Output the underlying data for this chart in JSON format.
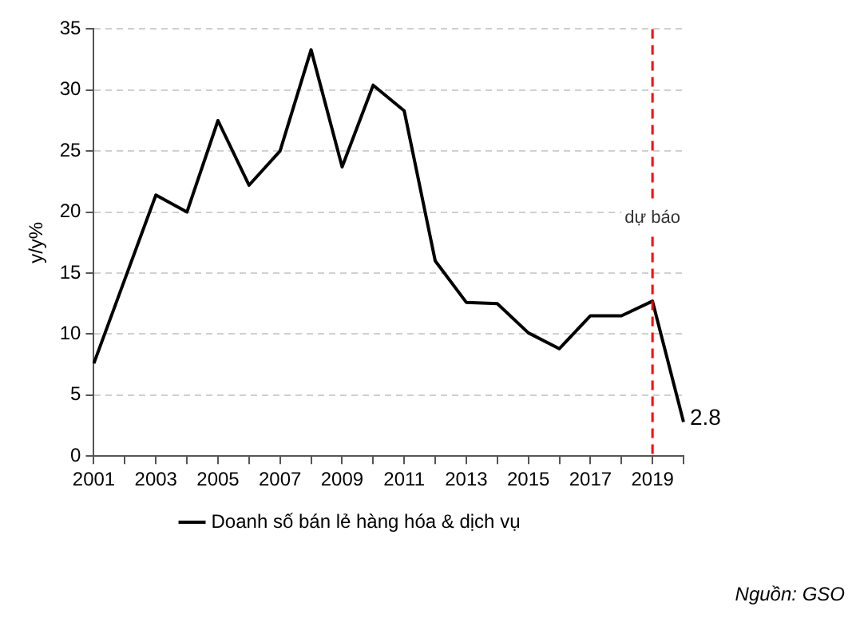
{
  "chart_data": {
    "type": "line",
    "ylabel": "y/y%",
    "categories": [
      "2001",
      null,
      "2003",
      null,
      "2005",
      null,
      "2007",
      null,
      "2009",
      null,
      "2011",
      null,
      "2013",
      null,
      "2015",
      null,
      "2017",
      null,
      "2019",
      null
    ],
    "series": [
      {
        "name": "Doanh số bán lẻ hàng hóa & dịch vụ",
        "color": "#000000",
        "values": [
          7.6,
          14.5,
          21.4,
          20,
          27.5,
          22.2,
          25,
          33.3,
          23.7,
          30.4,
          28.3,
          16,
          12.6,
          12.5,
          10.1,
          8.8,
          11.5,
          11.5,
          12.7,
          2.8
        ],
        "value_labels": [
          null,
          null,
          null,
          null,
          null,
          null,
          null,
          null,
          null,
          null,
          null,
          null,
          null,
          null,
          null,
          null,
          null,
          null,
          null,
          "2.8"
        ]
      }
    ],
    "ylim": [
      0,
      35
    ],
    "yticks": [
      0,
      5,
      10,
      15,
      20,
      25,
      30,
      35
    ],
    "grid": "y",
    "legend": "bottom",
    "marker": "none",
    "line_style": "solid",
    "ref_lines": [
      {
        "axis": "x",
        "value": "2019",
        "label": "dự báo",
        "color": "#ff0000",
        "line_style": "dashed"
      }
    ],
    "annotations": [
      "Nguồn: GSO"
    ]
  }
}
